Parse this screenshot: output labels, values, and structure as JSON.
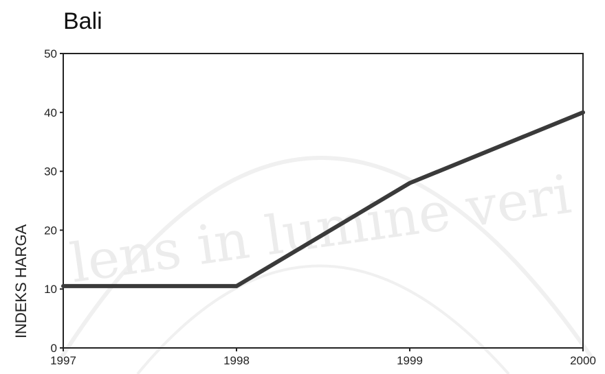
{
  "chart_data": {
    "type": "line",
    "title": "Bali",
    "xlabel": "",
    "ylabel": "INDEKS HARGA",
    "x": [
      "1997",
      "1998",
      "1999",
      "2000"
    ],
    "series": [
      {
        "values": [
          10.5,
          10.5,
          28,
          40
        ]
      }
    ],
    "ylim": [
      0,
      50
    ],
    "yticks": [
      "0",
      "10",
      "20",
      "30",
      "40",
      "50"
    ],
    "grid": false,
    "line_color": "#3a3a3a"
  },
  "watermark": "lens in lumine veri"
}
